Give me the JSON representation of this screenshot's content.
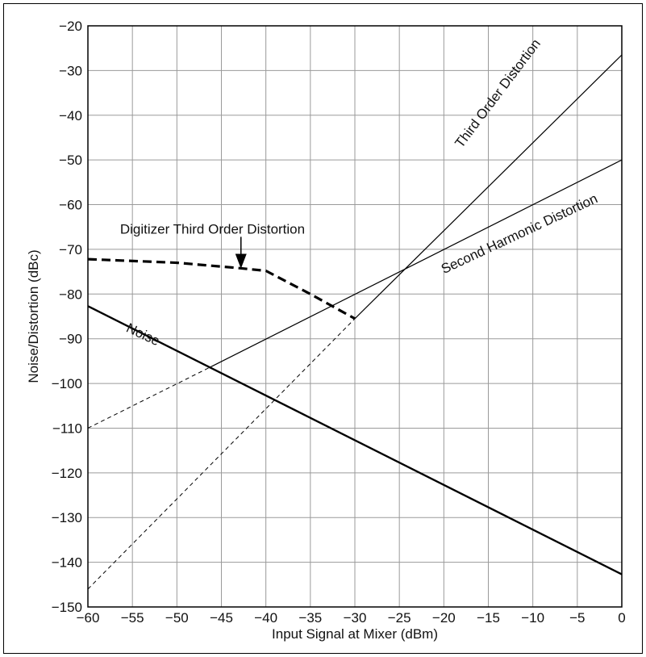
{
  "chart_data": {
    "type": "line",
    "xlabel": "Input Signal at Mixer (dBm)",
    "ylabel": "Noise/Distortion (dBc)",
    "xlim": [
      -60,
      0
    ],
    "ylim": [
      -150,
      -20
    ],
    "grid": true,
    "x_ticks": [
      -60,
      -55,
      -50,
      -45,
      -40,
      -35,
      -30,
      -25,
      -20,
      -15,
      -10,
      -5,
      0
    ],
    "x_tick_labels": [
      "−60",
      "−55",
      "−50",
      "−45",
      "−40",
      "−35",
      "−30",
      "−25",
      "−20",
      "−15",
      "−10",
      "−5",
      "0"
    ],
    "y_ticks": [
      -20,
      -30,
      -40,
      -50,
      -60,
      -70,
      -80,
      -90,
      -100,
      -110,
      -120,
      -130,
      -140,
      -150
    ],
    "y_tick_labels": [
      "−20",
      "−30",
      "−40",
      "−50",
      "−60",
      "−70",
      "−80",
      "−90",
      "−100",
      "−110",
      "−120",
      "−130",
      "−140",
      "−150"
    ],
    "series": [
      {
        "name": "Noise",
        "style": "thick-solid",
        "points": [
          [
            -60,
            -82.7
          ],
          [
            0,
            -142.7
          ]
        ]
      },
      {
        "name": "Third Order Distortion",
        "style": "solid",
        "points": [
          [
            -30,
            -85.5
          ],
          [
            0,
            -26.5
          ]
        ]
      },
      {
        "name": "Third Order Distortion (extrapolated)",
        "style": "thin-dashed",
        "points": [
          [
            -60,
            -146
          ],
          [
            -30,
            -85.5
          ]
        ]
      },
      {
        "name": "Second Harmonic Distortion",
        "style": "solid",
        "points": [
          [
            -46.4,
            -96.5
          ],
          [
            0,
            -50
          ]
        ]
      },
      {
        "name": "Second Harmonic Distortion (extrapolated)",
        "style": "thin-dashed",
        "points": [
          [
            -60,
            -110
          ],
          [
            -46.4,
            -96.5
          ]
        ]
      },
      {
        "name": "Digitizer Third Order Distortion",
        "style": "thick-dashed",
        "points": [
          [
            -60,
            -72.2
          ],
          [
            -50,
            -73
          ],
          [
            -43,
            -74.2
          ],
          [
            -40,
            -74.8
          ],
          [
            -35,
            -80
          ],
          [
            -30,
            -85.5
          ]
        ]
      }
    ],
    "annotations": [
      {
        "id": "noise",
        "text": "Noise"
      },
      {
        "id": "third",
        "text": "Third Order Distortion"
      },
      {
        "id": "second",
        "text": "Second Harmonic Distortion"
      },
      {
        "id": "digitizer",
        "text": "Digitizer Third Order Distortion"
      }
    ]
  }
}
